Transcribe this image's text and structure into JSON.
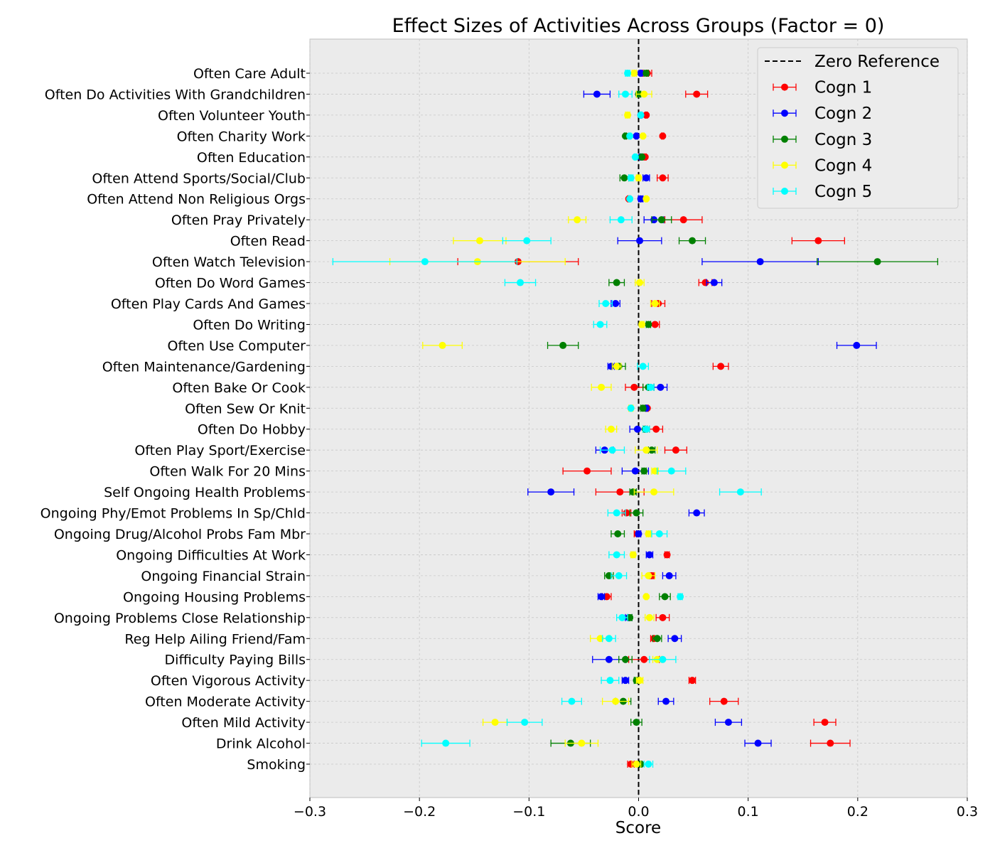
{
  "chart_data": {
    "type": "errorbar",
    "title": "Effect Sizes of Activities Across Groups (Factor = 0)",
    "xlabel": "Score",
    "ylabel": "",
    "xlim": [
      -0.3,
      0.3
    ],
    "xticks": [
      -0.3,
      -0.2,
      -0.1,
      0.0,
      0.1,
      0.2,
      0.3
    ],
    "xtick_labels": [
      "−0.3",
      "−0.2",
      "−0.1",
      "0.0",
      "0.1",
      "0.2",
      "0.3"
    ],
    "grid": true,
    "legend_position": "top-right",
    "reference_line": {
      "label": "Zero Reference",
      "x": 0,
      "style": "dashed",
      "color": "#000000"
    },
    "categories": [
      "Often Care Adult",
      "Often Do Activities With Grandchildren",
      "Often Volunteer Youth",
      "Often Charity Work",
      "Often Education",
      "Often Attend Sports/Social/Club",
      "Often Attend Non Religious Orgs",
      "Often Pray Privately",
      "Often Read",
      "Often Watch Television",
      "Often Do Word Games",
      "Often Play Cards And Games",
      "Often Do Writing",
      "Often Use Computer",
      "Often Maintenance/Gardening",
      "Often Bake Or Cook",
      "Often Sew Or Knit",
      "Often Do Hobby",
      "Often Play Sport/Exercise",
      "Often Walk For 20 Mins",
      "Self Ongoing Health Problems",
      "Ongoing Phy/Emot Problems In Sp/Chld",
      "Ongoing Drug/Alcohol Probs Fam Mbr",
      "Ongoing Difficulties At Work",
      "Ongoing Financial Strain",
      "Ongoing Housing Problems",
      "Ongoing Problems Close Relationship",
      "Reg Help Ailing Friend/Fam",
      "Difficulty Paying Bills",
      "Often Vigorous Activity",
      "Often Moderate Activity",
      "Often Mild Activity",
      "Drink Alcohol",
      "Smoking"
    ],
    "series": [
      {
        "name": "Cogn 1",
        "color": "#ff0000",
        "values": [
          0.008,
          0.053,
          0.007,
          0.022,
          0.006,
          0.022,
          -0.009,
          0.041,
          0.164,
          -0.11,
          0.061,
          0.018,
          0.015,
          null,
          0.075,
          -0.004,
          0.008,
          0.016,
          0.034,
          -0.047,
          -0.017,
          -0.011,
          -0.001,
          0.026,
          0.012,
          -0.029,
          0.022,
          0.014,
          0.005,
          0.049,
          0.078,
          0.17,
          0.175,
          -0.007
        ],
        "errors": [
          0.004,
          0.01,
          0.001,
          0.001,
          0.001,
          0.005,
          0.001,
          0.017,
          0.024,
          0.055,
          0.006,
          0.006,
          0.004,
          null,
          0.007,
          0.008,
          0.001,
          0.006,
          0.01,
          0.022,
          0.022,
          0.004,
          0.003,
          0.002,
          0.002,
          0.004,
          0.006,
          0.003,
          0.014,
          0.003,
          0.013,
          0.01,
          0.018,
          0.003
        ]
      },
      {
        "name": "Cogn 2",
        "color": "#0000ff",
        "values": [
          0.002,
          -0.038,
          0.002,
          -0.002,
          0.002,
          0.007,
          0.002,
          0.014,
          0.001,
          0.111,
          0.069,
          -0.021,
          null,
          0.199,
          -0.025,
          0.02,
          0.007,
          -0.001,
          -0.031,
          -0.003,
          -0.08,
          0.053,
          0.0,
          0.01,
          0.028,
          -0.034,
          -0.009,
          0.033,
          -0.027,
          -0.012,
          0.025,
          0.082,
          0.109,
          0.002
        ],
        "errors": [
          0.001,
          0.012,
          0.001,
          0.001,
          0.001,
          0.003,
          0.002,
          0.009,
          0.02,
          0.053,
          0.007,
          0.004,
          null,
          0.018,
          0.003,
          0.006,
          0.001,
          0.007,
          0.008,
          0.012,
          0.021,
          0.007,
          0.002,
          0.003,
          0.006,
          0.003,
          0.003,
          0.006,
          0.015,
          0.003,
          0.007,
          0.012,
          0.012,
          0.001
        ]
      },
      {
        "name": "Cogn 3",
        "color": "#008000",
        "values": [
          0.007,
          0.0,
          null,
          -0.012,
          0.003,
          -0.013,
          null,
          0.021,
          0.049,
          0.218,
          -0.02,
          null,
          0.009,
          -0.069,
          -0.018,
          0.009,
          0.004,
          0.006,
          0.012,
          0.005,
          -0.005,
          -0.002,
          -0.019,
          null,
          -0.027,
          0.024,
          -0.008,
          0.017,
          -0.012,
          -0.002,
          -0.014,
          -0.002,
          -0.062,
          0.002
        ],
        "errors": [
          0.002,
          0.002,
          null,
          0.001,
          0.001,
          0.004,
          null,
          0.009,
          0.012,
          0.055,
          0.007,
          null,
          0.002,
          0.014,
          0.006,
          0.005,
          0.002,
          0.002,
          0.003,
          0.002,
          0.003,
          0.006,
          0.006,
          null,
          0.004,
          0.005,
          0.002,
          0.004,
          0.006,
          0.002,
          0.007,
          0.005,
          0.018,
          0.001
        ]
      },
      {
        "name": "Cogn 4",
        "color": "#ffff00",
        "values": [
          -0.004,
          0.005,
          -0.01,
          0.004,
          null,
          0.0,
          0.007,
          -0.056,
          -0.145,
          -0.147,
          0.001,
          0.015,
          0.003,
          -0.179,
          -0.02,
          -0.034,
          -0.007,
          -0.025,
          0.007,
          0.015,
          0.014,
          null,
          0.009,
          -0.005,
          0.009,
          0.007,
          0.01,
          -0.035,
          0.017,
          0.001,
          -0.021,
          -0.131,
          -0.052,
          -0.002
        ],
        "errors": [
          0.002,
          0.007,
          0.002,
          0.001,
          null,
          0.002,
          0.001,
          0.008,
          0.024,
          0.08,
          0.004,
          0.004,
          0.002,
          0.018,
          0.004,
          0.009,
          0.002,
          0.005,
          0.01,
          0.003,
          0.018,
          null,
          0.002,
          0.002,
          0.006,
          0.001,
          0.004,
          0.009,
          0.004,
          0.003,
          0.012,
          0.011,
          0.015,
          0.004
        ]
      },
      {
        "name": "Cogn 5",
        "color": "#00ffff",
        "values": [
          -0.01,
          -0.012,
          0.002,
          -0.008,
          -0.003,
          -0.007,
          -0.008,
          -0.016,
          -0.102,
          -0.195,
          -0.108,
          -0.03,
          -0.035,
          null,
          0.004,
          0.011,
          -0.007,
          0.007,
          -0.024,
          0.03,
          0.093,
          -0.02,
          0.019,
          -0.02,
          -0.018,
          0.038,
          -0.015,
          -0.027,
          0.022,
          -0.026,
          -0.061,
          -0.104,
          -0.176,
          0.009
        ],
        "errors": [
          0.002,
          0.006,
          0.001,
          0.001,
          0.001,
          0.002,
          0.001,
          0.01,
          0.022,
          0.084,
          0.014,
          0.006,
          0.006,
          null,
          0.005,
          0.003,
          0.001,
          0.003,
          0.011,
          0.013,
          0.019,
          0.008,
          0.007,
          0.007,
          0.007,
          0.002,
          0.005,
          0.006,
          0.012,
          0.008,
          0.009,
          0.016,
          0.022,
          0.004
        ]
      }
    ]
  }
}
